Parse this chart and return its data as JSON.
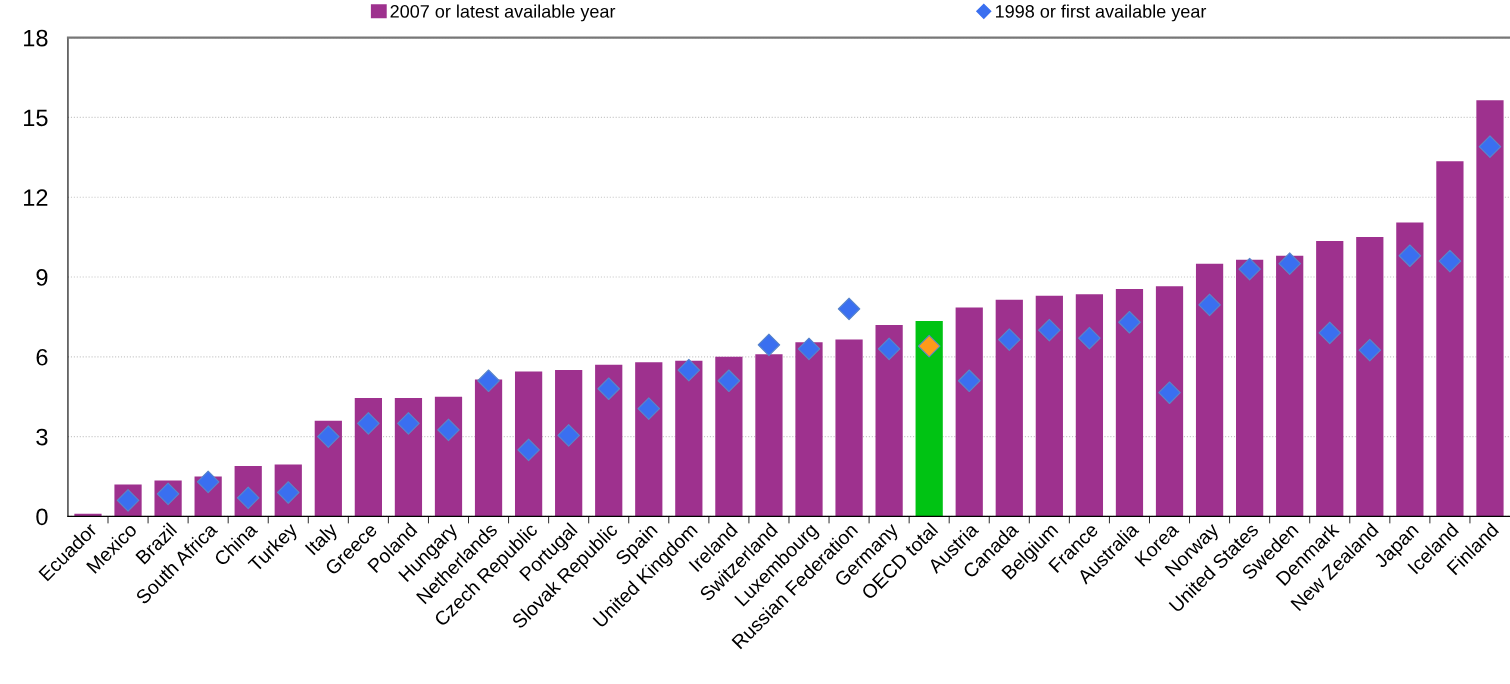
{
  "chart_data": {
    "type": "bar",
    "categories": [
      "Ecuador",
      "Mexico",
      "Brazil",
      "South Africa",
      "China",
      "Turkey",
      "Italy",
      "Greece",
      "Poland",
      "Hungary",
      "Netherlands",
      "Czech Republic",
      "Portugal",
      "Slovak Republic",
      "Spain",
      "United Kingdom",
      "Ireland",
      "Switzerland",
      "Luxembourg",
      "Russian Federation",
      "Germany",
      "OECD total",
      "Austria",
      "Canada",
      "Belgium",
      "France",
      "Australia",
      "Korea",
      "Norway",
      "United States",
      "Sweden",
      "Denmark",
      "New Zealand",
      "Japan",
      "Iceland",
      "Finland"
    ],
    "series": [
      {
        "name": "2007 or latest available year",
        "color": "#9e318e",
        "colors": [
          "#9e318e",
          "#9e318e",
          "#9e318e",
          "#9e318e",
          "#9e318e",
          "#9e318e",
          "#9e318e",
          "#9e318e",
          "#9e318e",
          "#9e318e",
          "#9e318e",
          "#9e318e",
          "#9e318e",
          "#9e318e",
          "#9e318e",
          "#9e318e",
          "#9e318e",
          "#9e318e",
          "#9e318e",
          "#9e318e",
          "#9e318e",
          "#00c313",
          "#9e318e",
          "#9e318e",
          "#9e318e",
          "#9e318e",
          "#9e318e",
          "#9e318e",
          "#9e318e",
          "#9e318e",
          "#9e318e",
          "#9e318e",
          "#9e318e",
          "#9e318e",
          "#9e318e",
          "#9e318e"
        ],
        "values": [
          0.1,
          1.2,
          1.35,
          1.5,
          1.9,
          1.95,
          3.6,
          4.45,
          4.45,
          4.5,
          5.15,
          5.45,
          5.5,
          5.7,
          5.8,
          5.85,
          6.0,
          6.1,
          6.55,
          6.65,
          7.2,
          7.35,
          7.85,
          8.15,
          8.3,
          8.35,
          8.55,
          8.65,
          9.5,
          9.65,
          9.8,
          10.35,
          10.5,
          11.05,
          13.35,
          15.65
        ]
      },
      {
        "name": "1998 or first available year",
        "type": "scatter",
        "marker": "diamond",
        "color": "#3a6ff0",
        "colors": [
          "#3a6ff0",
          "#3a6ff0",
          "#3a6ff0",
          "#3a6ff0",
          "#3a6ff0",
          "#3a6ff0",
          "#3a6ff0",
          "#3a6ff0",
          "#3a6ff0",
          "#3a6ff0",
          "#3a6ff0",
          "#3a6ff0",
          "#3a6ff0",
          "#3a6ff0",
          "#3a6ff0",
          "#3a6ff0",
          "#3a6ff0",
          "#3a6ff0",
          "#3a6ff0",
          "#3a6ff0",
          "#3a6ff0",
          "#ff9a1a",
          "#3a6ff0",
          "#3a6ff0",
          "#3a6ff0",
          "#3a6ff0",
          "#3a6ff0",
          "#3a6ff0",
          "#3a6ff0",
          "#3a6ff0",
          "#3a6ff0",
          "#3a6ff0",
          "#3a6ff0",
          "#3a6ff0",
          "#3a6ff0",
          "#3a6ff0"
        ],
        "values": [
          null,
          0.6,
          0.85,
          1.3,
          0.7,
          0.9,
          3.0,
          3.5,
          3.5,
          3.25,
          5.1,
          2.5,
          3.05,
          4.8,
          4.05,
          5.5,
          5.1,
          6.45,
          6.3,
          7.8,
          6.3,
          6.4,
          5.1,
          6.65,
          7.0,
          6.7,
          7.3,
          4.65,
          7.95,
          9.3,
          9.5,
          6.9,
          6.25,
          9.8,
          9.6,
          13.9
        ]
      }
    ],
    "ylim": [
      0,
      18
    ],
    "yticks": [
      0,
      3,
      6,
      9,
      12,
      15,
      18
    ],
    "grid": "y",
    "legend": "top"
  }
}
